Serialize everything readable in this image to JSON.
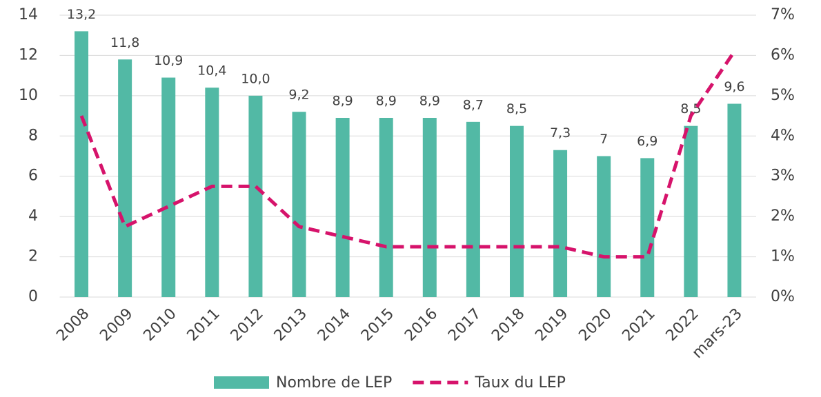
{
  "chart_data": {
    "type": "combo",
    "categories": [
      "2008",
      "2009",
      "2010",
      "2011",
      "2012",
      "2013",
      "2014",
      "2015",
      "2016",
      "2017",
      "2018",
      "2019",
      "2020",
      "2021",
      "2022",
      "mars-23"
    ],
    "series": [
      {
        "name": "Nombre de LEP",
        "type": "bar",
        "color": "#52b9a5",
        "values": [
          13.2,
          11.8,
          10.9,
          10.4,
          10.0,
          9.2,
          8.9,
          8.9,
          8.9,
          8.7,
          8.5,
          7.3,
          7,
          6.9,
          8.5,
          9.6
        ],
        "value_labels": [
          "13,2",
          "11,8",
          "10,9",
          "10,4",
          "10,0",
          "9,2",
          "8,9",
          "8,9",
          "8,9",
          "8,7",
          "8,5",
          "7,3",
          "7",
          "6,9",
          "8,5",
          "9,6"
        ]
      },
      {
        "name": "Taux du LEP",
        "type": "line",
        "axis": "y2",
        "color": "#d6136b",
        "values": [
          4.5,
          1.75,
          2.25,
          2.75,
          2.75,
          1.75,
          1.5,
          1.25,
          1.25,
          1.25,
          1.25,
          1.25,
          1.0,
          1.0,
          4.5,
          6.1
        ]
      }
    ],
    "ylim": [
      0,
      14
    ],
    "yticks": [
      0,
      2,
      4,
      6,
      8,
      10,
      12,
      14
    ],
    "y2lim": [
      0,
      7
    ],
    "y2ticks": [
      {
        "value": 0,
        "label": "0%"
      },
      {
        "value": 1,
        "label": "1%"
      },
      {
        "value": 2,
        "label": "2%"
      },
      {
        "value": 3,
        "label": "3%"
      },
      {
        "value": 4,
        "label": "4%"
      },
      {
        "value": 5,
        "label": "5%"
      },
      {
        "value": 6,
        "label": "6%"
      },
      {
        "value": 7,
        "label": "7%"
      }
    ],
    "grid": true,
    "legend": "bottom"
  }
}
